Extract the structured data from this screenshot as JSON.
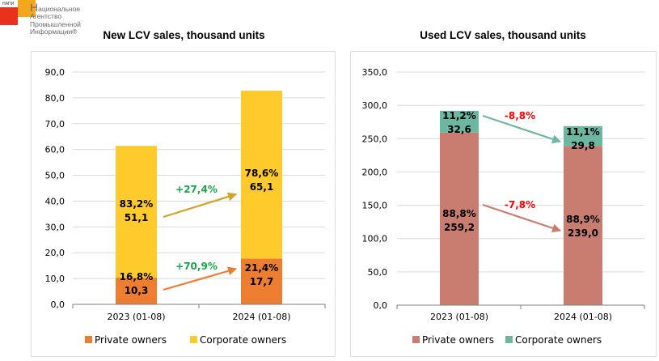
{
  "logo": {
    "abbr": "НАПИ",
    "first_letter": "Н",
    "line1_rest": "ациональное",
    "line2": "Агентство",
    "line3": "Промышленной",
    "line4": "Информации®",
    "colors": {
      "red": "#e8321e",
      "orange": "#f4a71d"
    }
  },
  "chart_data": [
    {
      "type": "bar",
      "stacked": true,
      "title": "New LCV sales, thousand units",
      "categories": [
        "2023 (01-08)",
        "2024 (01-08)"
      ],
      "xlabel": "",
      "ylabel": "",
      "ylim": [
        0,
        90
      ],
      "yticks": [
        0,
        10,
        20,
        30,
        40,
        50,
        60,
        70,
        80,
        90
      ],
      "ytick_labels": [
        "0,0",
        "10,0",
        "20,0",
        "30,0",
        "40,0",
        "50,0",
        "60,0",
        "70,0",
        "80,0",
        "90,0"
      ],
      "grid": true,
      "legend": "bottom",
      "series": [
        {
          "name": "Private owners",
          "color": "#ed7d31",
          "values": [
            10.3,
            17.7
          ],
          "value_labels": [
            "10,3",
            "17,7"
          ],
          "share_labels": [
            "16,8%",
            "21,4%"
          ]
        },
        {
          "name": "Corporate owners",
          "color": "#ffca2c",
          "values": [
            51.1,
            65.1
          ],
          "value_labels": [
            "51,1",
            "65,1"
          ],
          "share_labels": [
            "83,2%",
            "78,6%"
          ]
        }
      ],
      "annotations": [
        {
          "series": "Corporate owners",
          "text": "+27,4%",
          "color": "#1aa64a",
          "arrow_color": "#d4a227"
        },
        {
          "series": "Private owners",
          "text": "+70,9%",
          "color": "#1aa64a",
          "arrow_color": "#ed7d31"
        }
      ]
    },
    {
      "type": "bar",
      "stacked": true,
      "title": "Used LCV sales, thousand units",
      "categories": [
        "2023 (01-08)",
        "2024 (01-08)"
      ],
      "xlabel": "",
      "ylabel": "",
      "ylim": [
        0,
        350
      ],
      "yticks": [
        0,
        50,
        100,
        150,
        200,
        250,
        300,
        350
      ],
      "ytick_labels": [
        "0,0",
        "50,0",
        "100,0",
        "150,0",
        "200,0",
        "250,0",
        "300,0",
        "350,0"
      ],
      "grid": true,
      "legend": "bottom",
      "series": [
        {
          "name": "Private owners",
          "color": "#c97d70",
          "values": [
            259.2,
            239.0
          ],
          "value_labels": [
            "259,2",
            "239,0"
          ],
          "share_labels": [
            "88,8%",
            "88,9%"
          ]
        },
        {
          "name": "Corporate owners",
          "color": "#6bb7a0",
          "values": [
            32.6,
            29.8
          ],
          "value_labels": [
            "32,6",
            "29,8"
          ],
          "share_labels": [
            "11,2%",
            "11,1%"
          ]
        }
      ],
      "annotations": [
        {
          "series": "Corporate owners",
          "text": "-8,8%",
          "color": "#ff0000",
          "arrow_color": "#6bb7a0"
        },
        {
          "series": "Private owners",
          "text": "-7,8%",
          "color": "#ff0000",
          "arrow_color": "#c97d70"
        }
      ]
    }
  ]
}
